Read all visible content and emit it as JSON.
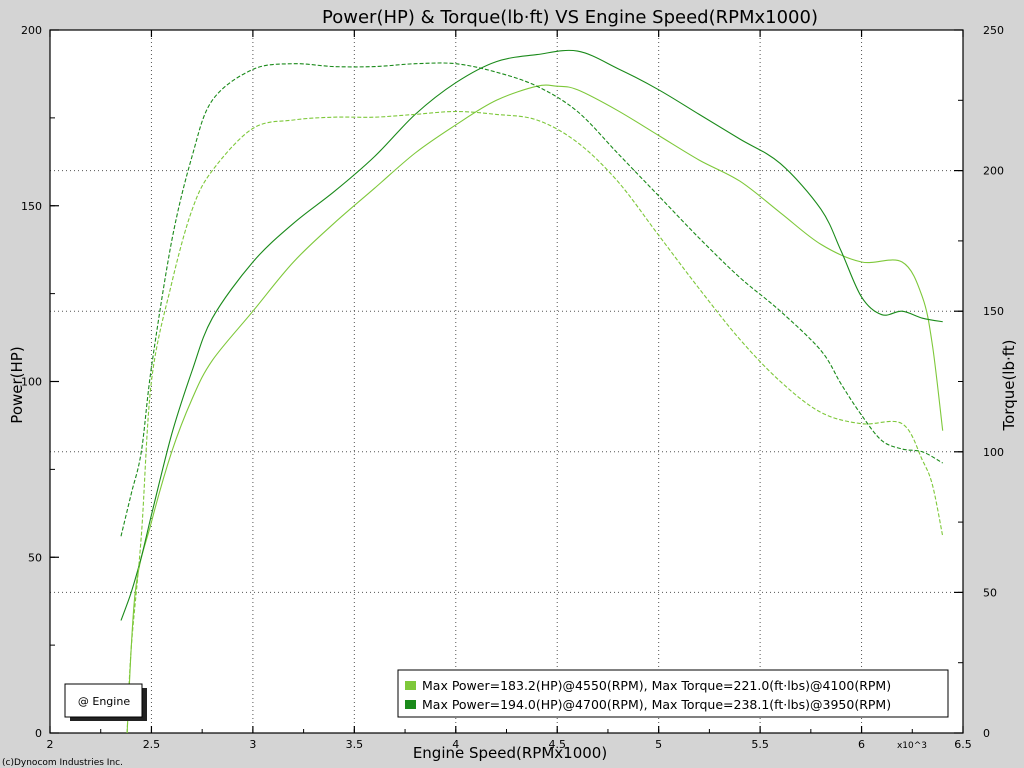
{
  "chart_data": {
    "type": "line",
    "title": "Power(HP) & Torque(lb·ft) VS Engine Speed(RPMx1000)",
    "xlabel": "Engine Speed(RPMx1000)",
    "ylabel": "Power(HP)",
    "y2label": "Torque(lb·ft)",
    "x_multiplier": "x10^3",
    "xlim": [
      2,
      6.5
    ],
    "ylim": [
      0,
      200
    ],
    "y2lim": [
      0,
      250
    ],
    "xticks": [
      "2",
      "2.5",
      "3",
      "3.5",
      "4",
      "4.5",
      "5",
      "5.5",
      "6",
      "6.5"
    ],
    "yticks": [
      "0",
      "50",
      "100",
      "150",
      "200"
    ],
    "y2ticks": [
      "0",
      "50",
      "100",
      "150",
      "200",
      "250"
    ],
    "grid": true,
    "copyright": "(c)Dynocom Industries Inc.",
    "engine_box": "@ Engine",
    "legend": [
      {
        "text": "Max Power=183.2(HP)@4550(RPM), Max Torque=221.0(ft·lbs)@4100(RPM)",
        "color": "#7ec83a"
      },
      {
        "text": "Max Power=194.0(HP)@4700(RPM), Max Torque=238.1(ft·lbs)@3950(RPM)",
        "color": "#1a8a1a"
      }
    ],
    "series": [
      {
        "kind": "power",
        "axis": "left",
        "color": "#7ec83a",
        "dash": false,
        "points": [
          [
            2.38,
            0
          ],
          [
            2.42,
            40
          ],
          [
            2.5,
            60
          ],
          [
            2.6,
            80
          ],
          [
            2.7,
            95
          ],
          [
            2.8,
            106
          ],
          [
            3.0,
            120
          ],
          [
            3.2,
            134
          ],
          [
            3.4,
            145
          ],
          [
            3.6,
            155
          ],
          [
            3.8,
            165
          ],
          [
            4.0,
            173
          ],
          [
            4.2,
            180
          ],
          [
            4.4,
            184
          ],
          [
            4.5,
            184
          ],
          [
            4.6,
            183
          ],
          [
            4.8,
            177
          ],
          [
            5.0,
            170
          ],
          [
            5.2,
            163
          ],
          [
            5.4,
            157
          ],
          [
            5.6,
            148
          ],
          [
            5.8,
            139
          ],
          [
            6.0,
            134
          ],
          [
            6.2,
            134
          ],
          [
            6.3,
            124
          ],
          [
            6.35,
            110
          ],
          [
            6.4,
            86
          ]
        ]
      },
      {
        "kind": "power",
        "axis": "left",
        "color": "#1a8a1a",
        "dash": false,
        "points": [
          [
            2.35,
            32
          ],
          [
            2.4,
            40
          ],
          [
            2.45,
            50
          ],
          [
            2.5,
            62
          ],
          [
            2.6,
            85
          ],
          [
            2.7,
            103
          ],
          [
            2.8,
            118
          ],
          [
            3.0,
            134
          ],
          [
            3.2,
            145
          ],
          [
            3.4,
            154
          ],
          [
            3.6,
            164
          ],
          [
            3.8,
            176
          ],
          [
            4.0,
            185
          ],
          [
            4.2,
            191
          ],
          [
            4.4,
            193
          ],
          [
            4.6,
            194
          ],
          [
            4.8,
            189
          ],
          [
            5.0,
            183
          ],
          [
            5.2,
            176
          ],
          [
            5.4,
            169
          ],
          [
            5.6,
            162
          ],
          [
            5.8,
            149
          ],
          [
            5.9,
            137
          ],
          [
            6.0,
            124
          ],
          [
            6.1,
            119
          ],
          [
            6.2,
            120
          ],
          [
            6.3,
            118
          ],
          [
            6.4,
            117
          ]
        ]
      },
      {
        "kind": "torque",
        "axis": "right",
        "color": "#7ec83a",
        "dash": true,
        "points": [
          [
            2.38,
            0
          ],
          [
            2.4,
            30
          ],
          [
            2.45,
            70
          ],
          [
            2.5,
            125
          ],
          [
            2.6,
            160
          ],
          [
            2.7,
            186
          ],
          [
            2.8,
            200
          ],
          [
            3.0,
            215
          ],
          [
            3.2,
            218
          ],
          [
            3.4,
            219
          ],
          [
            3.6,
            219
          ],
          [
            3.8,
            220
          ],
          [
            4.0,
            221
          ],
          [
            4.2,
            220
          ],
          [
            4.4,
            218
          ],
          [
            4.6,
            210
          ],
          [
            4.8,
            196
          ],
          [
            5.0,
            177
          ],
          [
            5.2,
            158
          ],
          [
            5.4,
            140
          ],
          [
            5.6,
            125
          ],
          [
            5.8,
            114
          ],
          [
            6.0,
            110
          ],
          [
            6.2,
            110
          ],
          [
            6.3,
            97
          ],
          [
            6.35,
            88
          ],
          [
            6.4,
            70
          ]
        ]
      },
      {
        "kind": "torque",
        "axis": "right",
        "color": "#1a8a1a",
        "dash": true,
        "points": [
          [
            2.35,
            70
          ],
          [
            2.4,
            85
          ],
          [
            2.45,
            100
          ],
          [
            2.5,
            130
          ],
          [
            2.6,
            175
          ],
          [
            2.7,
            205
          ],
          [
            2.8,
            225
          ],
          [
            3.0,
            236
          ],
          [
            3.2,
            238
          ],
          [
            3.4,
            237
          ],
          [
            3.6,
            237
          ],
          [
            3.8,
            238
          ],
          [
            4.0,
            238
          ],
          [
            4.2,
            235
          ],
          [
            4.4,
            230
          ],
          [
            4.6,
            221
          ],
          [
            4.8,
            206
          ],
          [
            5.0,
            191
          ],
          [
            5.2,
            176
          ],
          [
            5.4,
            162
          ],
          [
            5.6,
            150
          ],
          [
            5.8,
            136
          ],
          [
            5.9,
            124
          ],
          [
            6.0,
            113
          ],
          [
            6.1,
            104
          ],
          [
            6.2,
            101
          ],
          [
            6.3,
            100
          ],
          [
            6.4,
            96
          ]
        ]
      }
    ]
  }
}
